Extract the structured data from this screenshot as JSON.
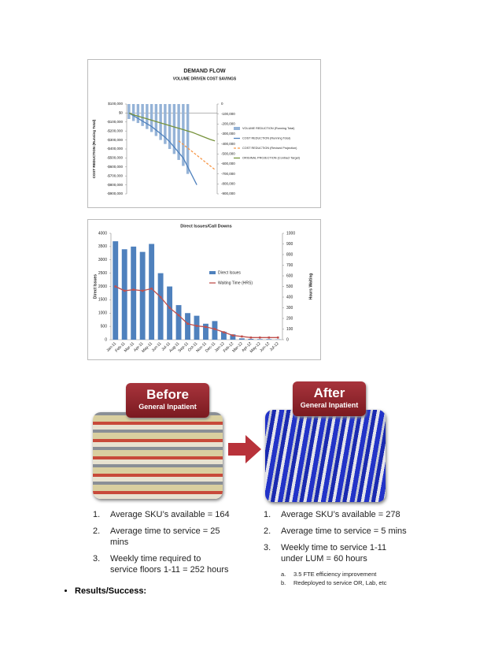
{
  "chart_data": [
    {
      "type": "combo",
      "title": "DEMAND FLOW",
      "subtitle": "VOLUME DRIVEN COST SAVINGS",
      "ylabel": "COST REDUCTION (Running Total)",
      "categories": [
        null,
        null,
        null,
        null,
        null,
        null,
        null,
        null,
        null,
        null,
        null,
        null,
        null,
        null,
        null,
        null,
        null,
        null,
        null,
        null
      ],
      "ylim": [
        -900000,
        100000
      ],
      "yticks": [
        {
          "value": 100000,
          "label": "$100,000"
        },
        {
          "value": 0,
          "label": "$0"
        },
        {
          "value": -100000,
          "label": "-$100,000"
        },
        {
          "value": -200000,
          "label": "-$200,000"
        },
        {
          "value": -300000,
          "label": "-$300,000"
        },
        {
          "value": -400000,
          "label": "-$400,000"
        },
        {
          "value": -500000,
          "label": "-$500,000"
        },
        {
          "value": -600000,
          "label": "-$600,000"
        },
        {
          "value": -700000,
          "label": "-$700,000"
        },
        {
          "value": -800000,
          "label": "-$800,000"
        },
        {
          "value": -900000,
          "label": "-$900,000"
        }
      ],
      "y2lim": [
        -900000,
        0
      ],
      "y2ticks": [
        0,
        {
          "value": -100000,
          "label": "-100,000"
        },
        {
          "value": -200000,
          "label": "-200,000"
        },
        {
          "value": -300000,
          "label": "-300,000"
        },
        {
          "value": -400000,
          "label": "-400,000"
        },
        {
          "value": -500000,
          "label": "-500,000"
        },
        {
          "value": -600000,
          "label": "-600,000"
        },
        {
          "value": -700000,
          "label": "-700,000"
        },
        {
          "value": -800000,
          "label": "-800,000"
        },
        {
          "value": -900000,
          "label": "-900,000"
        }
      ],
      "series": [
        {
          "name": "VOLUME REDUCTION (Running Total)",
          "type": "bar",
          "axis": "y2",
          "color": "#95b3d7",
          "values": [
            -150000,
            -170000,
            -190000,
            -220000,
            -250000,
            -280000,
            -320000,
            -360000,
            -400000,
            -450000,
            -500000,
            -560000,
            -620000,
            -700000,
            null,
            null,
            null,
            null,
            null,
            null
          ]
        },
        {
          "name": "COST REDUCTION (Running Total)",
          "type": "line",
          "color": "#4f81bd",
          "values": [
            0,
            -30000,
            -60000,
            -90000,
            -120000,
            -150000,
            -190000,
            -230000,
            -270000,
            -320000,
            -380000,
            -440000,
            -500000,
            -600000,
            -700000,
            -800000,
            null,
            null,
            null,
            null
          ]
        },
        {
          "name": "COST REDUCTION (Revised Projection)",
          "type": "line",
          "dash": true,
          "color": "#f79646",
          "values": [
            null,
            null,
            null,
            null,
            null,
            null,
            null,
            null,
            null,
            null,
            null,
            -310000,
            -350000,
            -390000,
            -430000,
            -470000,
            -510000,
            -550000,
            -590000,
            -630000
          ]
        },
        {
          "name": "ORIGINAL PROJECTION (Contract Target)",
          "type": "line",
          "color": "#77933c",
          "values": [
            0,
            -20000,
            -35000,
            -50000,
            -65000,
            -80000,
            -95000,
            -110000,
            -125000,
            -140000,
            -155000,
            -170000,
            -185000,
            -200000,
            -215000,
            -235000,
            -255000,
            -275000,
            -295000,
            -310000
          ]
        }
      ]
    },
    {
      "type": "combo",
      "title": "Direct Issues/Call Downs",
      "ylabel": "Direct Issues",
      "y2label": "Hours Waiting",
      "categories": [
        "Jan-11",
        "Feb-11",
        "Mar-11",
        "Apr-11",
        "May-11",
        "Jun-11",
        "Jul-11",
        "Aug-11",
        "Sep-11",
        "Oct-11",
        "Nov-11",
        "Dec-11",
        "Jan-12",
        "Feb-12",
        "Mar-12",
        "Apr-12",
        "May-12",
        "Jun-12",
        "Jul-12"
      ],
      "ylim": [
        0,
        4000
      ],
      "yticks": [
        0,
        500,
        1000,
        1500,
        2000,
        2500,
        3000,
        3500,
        4000
      ],
      "y2lim": [
        0,
        1000
      ],
      "y2ticks": [
        0,
        100,
        200,
        300,
        400,
        500,
        600,
        700,
        800,
        900,
        1000
      ],
      "series": [
        {
          "name": "Direct Issues",
          "type": "bar",
          "color": "#4f81bd",
          "values": [
            3700,
            3400,
            3500,
            3300,
            3600,
            2500,
            2000,
            1300,
            1000,
            900,
            600,
            700,
            300,
            200,
            50,
            30,
            20,
            20,
            10
          ]
        },
        {
          "name": "Waiting Time (HRS)",
          "type": "line",
          "axis": "y2",
          "markers": true,
          "color": "#c0504d",
          "values": [
            500,
            460,
            470,
            460,
            480,
            400,
            300,
            230,
            150,
            130,
            120,
            100,
            70,
            40,
            30,
            20,
            20,
            20,
            20
          ]
        }
      ]
    }
  ],
  "before": {
    "title": "Before",
    "subtitle": "General Inpatient",
    "items": [
      {
        "number": "1.",
        "text": "Average SKU’s available = 164"
      },
      {
        "number": "2.",
        "text": "Average time to service = 25 mins"
      },
      {
        "number": "3.",
        "text": "Weekly time required to service floors 1-11 = 252 hours"
      }
    ]
  },
  "after": {
    "title": "After",
    "subtitle": "General Inpatient",
    "items": [
      {
        "number": "1.",
        "text": "Average SKU’s available = 278"
      },
      {
        "number": "2.",
        "text": "Average time to service = 5 mins"
      },
      {
        "number": "3.",
        "text": "Weekly time to service 1-11 under LUM = 60 hours",
        "subitems": [
          {
            "number": "a.",
            "text": "3.5 FTE efficiency improvement"
          },
          {
            "number": "b.",
            "text": "Redeployed to service OR, Lab, etc"
          }
        ]
      }
    ]
  },
  "bullet": "Results/Success:"
}
